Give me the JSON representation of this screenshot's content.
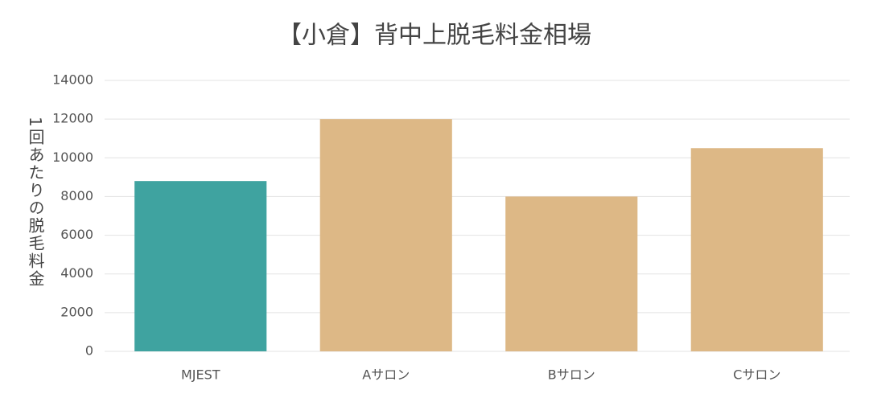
{
  "chart_data": {
    "type": "bar",
    "title": "【小倉】背中上脱毛料金相場",
    "y_label": "1回あたりの脱毛料金",
    "categories": [
      "MJEST",
      "Aサロン",
      "Bサロン",
      "Cサロン"
    ],
    "values": [
      8800,
      12000,
      8000,
      10500
    ],
    "colors": [
      "#3fa3a0",
      "#ddb886",
      "#ddb886",
      "#ddb886"
    ],
    "ylim": [
      0,
      14000
    ],
    "yticks": [
      0,
      2000,
      4000,
      6000,
      8000,
      10000,
      12000,
      14000
    ],
    "grid": true
  }
}
